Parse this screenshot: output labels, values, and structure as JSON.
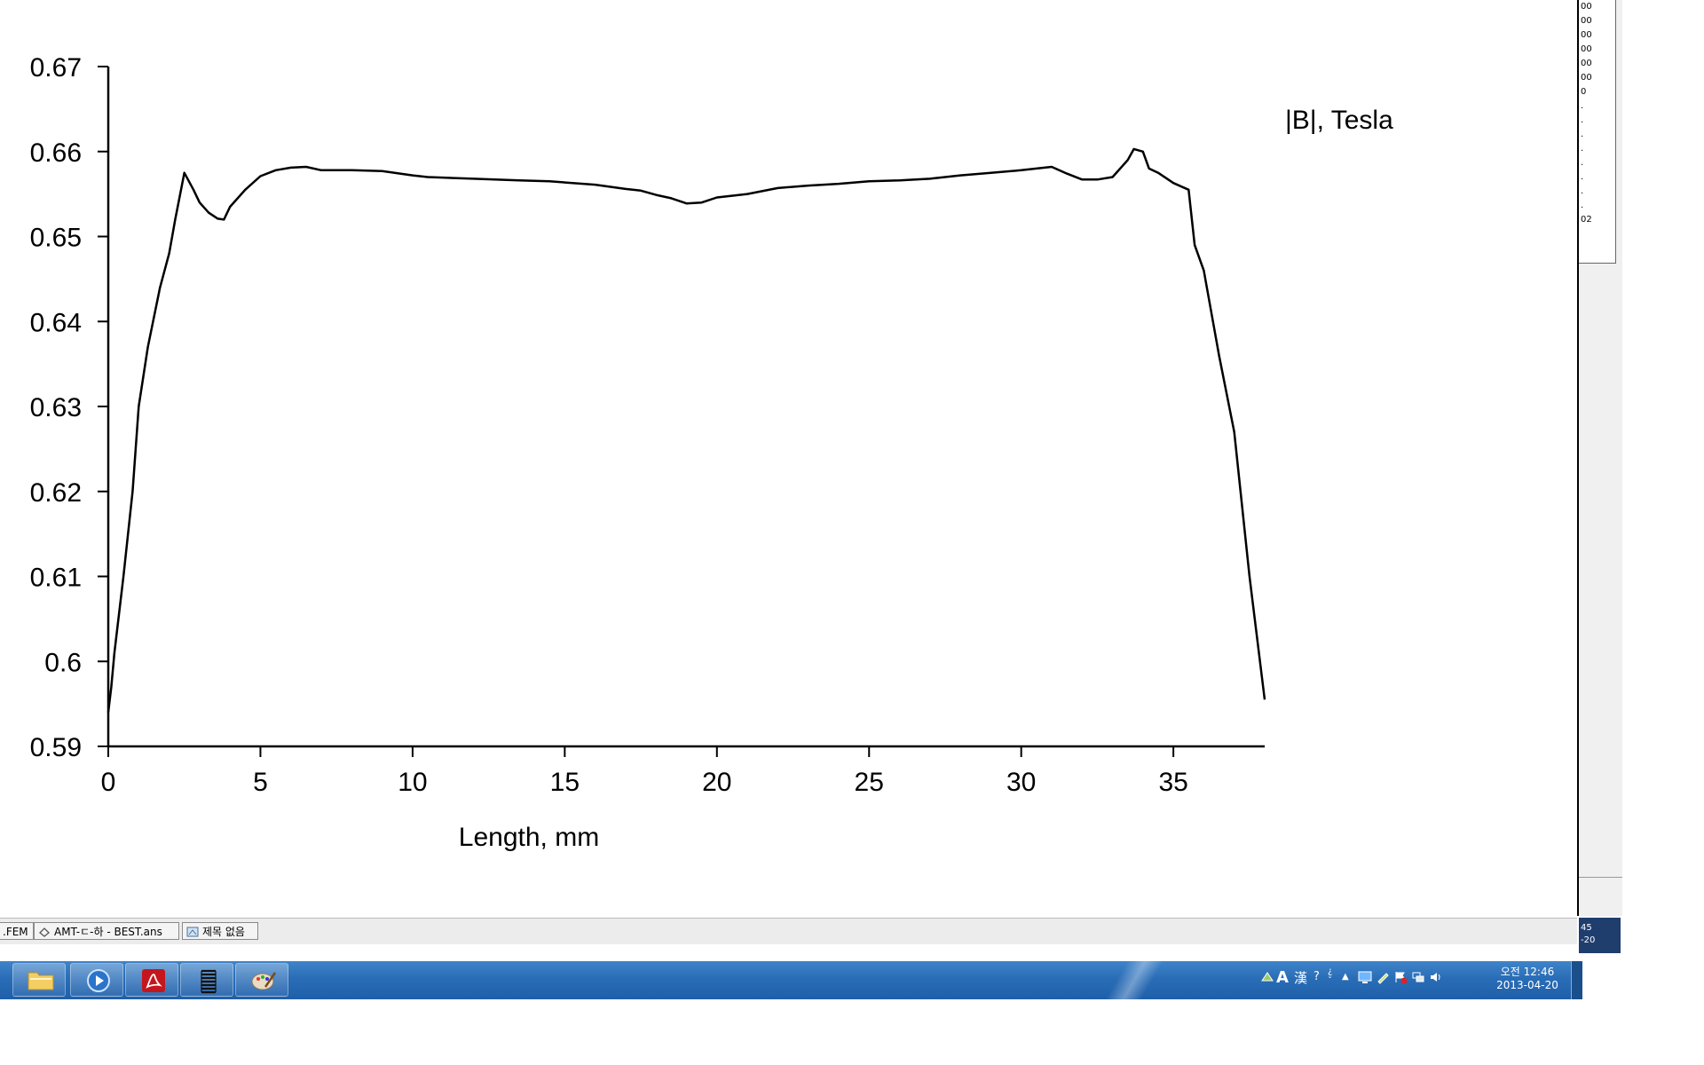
{
  "chart_data": {
    "type": "line",
    "title": "",
    "legend_label": "|B|, Tesla",
    "xlabel": "Length, mm",
    "ylabel": "",
    "xlim": [
      0,
      38
    ],
    "ylim": [
      0.59,
      0.67
    ],
    "xticks": [
      0,
      5,
      10,
      15,
      20,
      25,
      30,
      35
    ],
    "yticks": [
      0.59,
      0.6,
      0.61,
      0.62,
      0.63,
      0.64,
      0.65,
      0.66,
      0.67
    ],
    "ytick_labels": [
      "0.59",
      "0.6",
      "0.61",
      "0.62",
      "0.63",
      "0.64",
      "0.65",
      "0.66",
      "0.67"
    ],
    "grid": false,
    "series": [
      {
        "x": [
          0,
          0.1,
          0.2,
          0.5,
          0.8,
          1.0,
          1.3,
          1.7,
          2.0,
          2.2,
          2.5,
          2.8,
          3.0,
          3.3,
          3.6,
          3.8,
          4.0,
          4.5,
          5.0,
          5.5,
          6.0,
          6.5,
          7.0,
          8.0,
          9.0,
          10.0,
          10.5,
          12.0,
          13.5,
          14.5,
          16.0,
          17.0,
          17.5,
          18.0,
          18.5,
          19.0,
          19.5,
          20.0,
          21.0,
          22.0,
          23.0,
          24.0,
          25.0,
          26.0,
          27.0,
          28.0,
          29.0,
          30.0,
          30.5,
          31.0,
          31.5,
          32.0,
          32.5,
          33.0,
          33.5,
          33.7,
          34.0,
          34.2,
          34.5,
          35.0,
          35.5,
          35.7,
          36.0,
          36.5,
          37.0,
          37.5,
          38.0
        ],
        "y": [
          0.594,
          0.597,
          0.601,
          0.61,
          0.62,
          0.63,
          0.637,
          0.644,
          0.648,
          0.652,
          0.6575,
          0.6555,
          0.654,
          0.6528,
          0.6521,
          0.652,
          0.6535,
          0.6555,
          0.6571,
          0.6578,
          0.6581,
          0.6582,
          0.6578,
          0.6578,
          0.6577,
          0.6572,
          0.657,
          0.6568,
          0.6566,
          0.6565,
          0.6561,
          0.6556,
          0.6554,
          0.6549,
          0.6545,
          0.6539,
          0.654,
          0.6546,
          0.655,
          0.6557,
          0.656,
          0.6562,
          0.6565,
          0.6566,
          0.6568,
          0.6572,
          0.6575,
          0.6578,
          0.658,
          0.6582,
          0.6574,
          0.6567,
          0.6567,
          0.657,
          0.659,
          0.6603,
          0.66,
          0.658,
          0.6575,
          0.6563,
          0.6555,
          0.649,
          0.646,
          0.636,
          0.627,
          0.61,
          0.5955
        ]
      }
    ]
  },
  "right_panel": {
    "lines": [
      "00",
      "00",
      "00",
      "00",
      "00",
      "00",
      "0",
      ".",
      ".",
      ".",
      ".",
      ".",
      ".",
      ".",
      ".",
      "02"
    ],
    "bottom_tab": [
      "45",
      "-20"
    ]
  },
  "doc_tabs": [
    {
      "label": ".FEM"
    },
    {
      "label": "AMT-ㄷ-하 - BEST.ans"
    },
    {
      "label": "제목 없음"
    }
  ],
  "taskbar": {
    "apps": [
      "folder-icon",
      "media-player-icon",
      "adobe-reader-icon",
      "coil-app-icon",
      "paint-icon"
    ],
    "tray": {
      "ime_a": "A",
      "ime_han": "漢",
      "help": "?",
      "clock_time": "오전 12:46",
      "clock_date": "2013-04-20"
    }
  }
}
